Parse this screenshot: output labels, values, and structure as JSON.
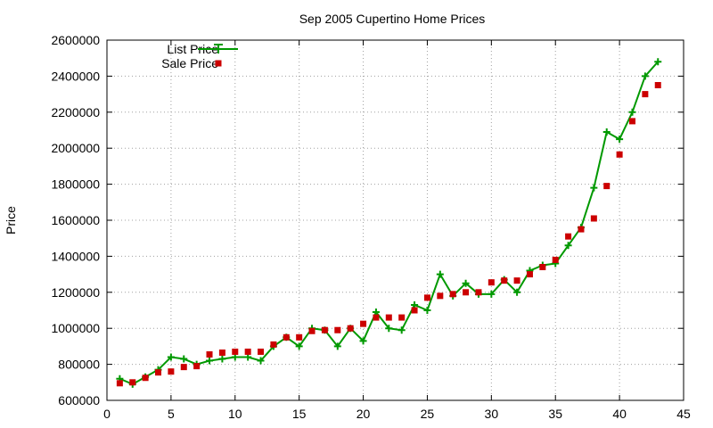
{
  "chart_data": {
    "type": "line",
    "title": "Sep 2005 Cupertino Home Prices",
    "xlabel": "",
    "ylabel": "Price",
    "xlim": [
      0,
      45
    ],
    "ylim": [
      600000,
      2600000
    ],
    "xticks": [
      0,
      5,
      10,
      15,
      20,
      25,
      30,
      35,
      40,
      45
    ],
    "yticks": [
      600000,
      800000,
      1000000,
      1200000,
      1400000,
      1600000,
      1800000,
      2000000,
      2200000,
      2400000,
      2600000
    ],
    "grid": true,
    "legend_position": "top-left",
    "series": [
      {
        "name": "List Price",
        "style": "line+cross",
        "color": "#009900",
        "x": [
          1,
          2,
          3,
          4,
          5,
          6,
          7,
          8,
          9,
          10,
          11,
          12,
          13,
          14,
          15,
          16,
          17,
          18,
          19,
          20,
          21,
          22,
          23,
          24,
          25,
          26,
          27,
          28,
          29,
          30,
          31,
          32,
          33,
          34,
          35,
          36,
          37,
          38,
          39,
          40,
          41,
          42,
          43
        ],
        "y": [
          720000,
          690000,
          730000,
          770000,
          840000,
          830000,
          800000,
          820000,
          830000,
          840000,
          840000,
          820000,
          900000,
          950000,
          900000,
          1000000,
          990000,
          900000,
          1000000,
          930000,
          1090000,
          1000000,
          990000,
          1130000,
          1100000,
          1300000,
          1180000,
          1250000,
          1190000,
          1190000,
          1270000,
          1200000,
          1320000,
          1350000,
          1360000,
          1460000,
          1560000,
          1780000,
          2090000,
          2050000,
          2200000,
          2400000,
          2480000
        ]
      },
      {
        "name": "Sale Price",
        "style": "square",
        "color": "#cc0000",
        "x": [
          1,
          2,
          3,
          4,
          5,
          6,
          7,
          8,
          9,
          10,
          11,
          12,
          13,
          14,
          15,
          16,
          17,
          18,
          19,
          20,
          21,
          22,
          23,
          24,
          25,
          26,
          27,
          28,
          29,
          30,
          31,
          32,
          33,
          34,
          35,
          36,
          37,
          38,
          39,
          40,
          41,
          42,
          43
        ],
        "y": [
          695000,
          700000,
          725000,
          755000,
          760000,
          785000,
          790000,
          855000,
          865000,
          870000,
          870000,
          870000,
          910000,
          950000,
          950000,
          985000,
          990000,
          990000,
          1000000,
          1025000,
          1060000,
          1060000,
          1060000,
          1100000,
          1170000,
          1180000,
          1190000,
          1200000,
          1200000,
          1255000,
          1265000,
          1265000,
          1300000,
          1340000,
          1380000,
          1510000,
          1550000,
          1610000,
          1790000,
          1965000,
          2150000,
          2300000,
          2350000
        ]
      }
    ]
  }
}
